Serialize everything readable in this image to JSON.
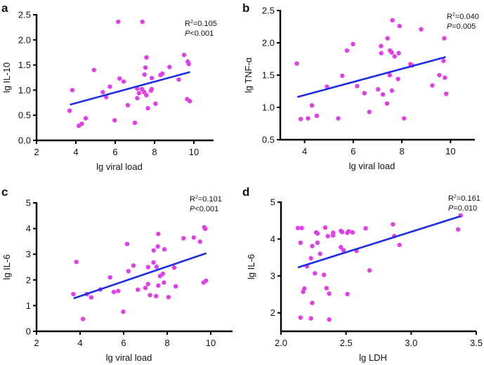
{
  "colors": {
    "points": "#e23ee8",
    "fit_line": "#1b2ee6",
    "axis": "#000000"
  },
  "chart_data": [
    {
      "panel": "a",
      "type": "scatter",
      "xlabel": "lg viral load",
      "ylabel": "lg IL-10",
      "xlim": [
        2,
        11
      ],
      "ylim": [
        0,
        2.5
      ],
      "xticks": [
        "2",
        "4",
        "6",
        "8",
        "10"
      ],
      "xtick_values": [
        2,
        4,
        6,
        8,
        10
      ],
      "yticks": [
        "0.0",
        "0.5",
        "1.0",
        "1.5",
        "2.0",
        "2.5"
      ],
      "ytick_values": [
        0,
        0.5,
        1,
        1.5,
        2,
        2.5
      ],
      "r2": "R",
      "r2_sup": "2",
      "r2_value": "=0.105",
      "p_symbol": "P",
      "p_value": "<0.001",
      "fit": [
        [
          3.7,
          0.71
        ],
        [
          9.8,
          1.36
        ]
      ],
      "points": [
        [
          6.15,
          2.36
        ],
        [
          7.38,
          2.36
        ],
        [
          3.68,
          0.59
        ],
        [
          3.82,
          1.0
        ],
        [
          4.15,
          0.29
        ],
        [
          4.3,
          0.33
        ],
        [
          4.5,
          0.44
        ],
        [
          4.92,
          1.4
        ],
        [
          5.37,
          0.96
        ],
        [
          5.54,
          0.86
        ],
        [
          5.73,
          1.07
        ],
        [
          5.97,
          0.4
        ],
        [
          6.22,
          1.23
        ],
        [
          6.43,
          1.17
        ],
        [
          6.64,
          0.7
        ],
        [
          7.0,
          0.35
        ],
        [
          7.12,
          1.03
        ],
        [
          7.12,
          0.84
        ],
        [
          7.21,
          0.94
        ],
        [
          7.36,
          1.02
        ],
        [
          7.49,
          1.31
        ],
        [
          7.48,
          0.96
        ],
        [
          7.58,
          0.9
        ],
        [
          7.54,
          1.45
        ],
        [
          7.59,
          1.65
        ],
        [
          7.66,
          0.64
        ],
        [
          7.82,
          0.99
        ],
        [
          7.85,
          1.02
        ],
        [
          7.86,
          1.24
        ],
        [
          8.05,
          0.73
        ],
        [
          8.3,
          1.3
        ],
        [
          8.4,
          1.33
        ],
        [
          8.76,
          1.46
        ],
        [
          9.23,
          1.21
        ],
        [
          9.5,
          1.7
        ],
        [
          9.69,
          1.57
        ],
        [
          9.74,
          1.52
        ],
        [
          9.66,
          0.82
        ],
        [
          9.79,
          0.78
        ]
      ]
    },
    {
      "panel": "b",
      "type": "scatter",
      "xlabel": "lg viral load",
      "ylabel": "lg TNF-α",
      "xlim": [
        3,
        11
      ],
      "ylim": [
        0.5,
        2.5
      ],
      "xticks": [
        "4",
        "6",
        "8",
        "10"
      ],
      "xtick_values": [
        4,
        6,
        8,
        10
      ],
      "yticks": [
        "0.5",
        "1.0",
        "1.5",
        "2.0",
        "2.5"
      ],
      "ytick_values": [
        0.5,
        1,
        1.5,
        2,
        2.5
      ],
      "r2": "R",
      "r2_sup": "2",
      "r2_value": "=0.040",
      "p_symbol": "P",
      "p_value": "=0.005",
      "fit": [
        [
          3.7,
          1.16
        ],
        [
          9.8,
          1.78
        ]
      ],
      "points": [
        [
          3.68,
          1.68
        ],
        [
          3.84,
          0.82
        ],
        [
          4.14,
          0.83
        ],
        [
          4.3,
          1.03
        ],
        [
          4.5,
          0.87
        ],
        [
          4.92,
          1.32
        ],
        [
          5.38,
          0.83
        ],
        [
          5.55,
          1.49
        ],
        [
          5.74,
          1.88
        ],
        [
          5.99,
          1.98
        ],
        [
          6.16,
          1.33
        ],
        [
          6.46,
          1.22
        ],
        [
          6.66,
          0.93
        ],
        [
          7.02,
          1.28
        ],
        [
          7.14,
          1.95
        ],
        [
          7.15,
          1.84
        ],
        [
          7.22,
          1.2
        ],
        [
          7.39,
          1.06
        ],
        [
          7.41,
          2.07
        ],
        [
          7.51,
          1.88
        ],
        [
          7.5,
          1.5
        ],
        [
          7.58,
          1.85
        ],
        [
          7.61,
          2.35
        ],
        [
          7.59,
          1.26
        ],
        [
          7.7,
          1.79
        ],
        [
          7.84,
          1.44
        ],
        [
          7.87,
          1.84
        ],
        [
          7.9,
          2.26
        ],
        [
          8.09,
          0.83
        ],
        [
          8.35,
          1.67
        ],
        [
          8.42,
          1.65
        ],
        [
          8.79,
          2.21
        ],
        [
          9.25,
          1.34
        ],
        [
          9.54,
          1.5
        ],
        [
          9.71,
          1.72
        ],
        [
          9.74,
          2.07
        ],
        [
          9.77,
          1.46
        ],
        [
          9.82,
          1.21
        ]
      ]
    },
    {
      "panel": "c",
      "type": "scatter",
      "xlabel": "lg viral load",
      "ylabel": "lg IL-6",
      "xlim": [
        2,
        11
      ],
      "ylim": [
        0,
        5
      ],
      "xticks": [
        "2",
        "4",
        "6",
        "8",
        "10"
      ],
      "xtick_values": [
        2,
        4,
        6,
        8,
        10
      ],
      "yticks": [
        "0",
        "1",
        "2",
        "3",
        "4",
        "5"
      ],
      "ytick_values": [
        0,
        1,
        2,
        3,
        4,
        5
      ],
      "r2": "R",
      "r2_sup": "2",
      "r2_value": "=0.101",
      "p_symbol": "P",
      "p_value": "<0.001",
      "fit": [
        [
          3.7,
          1.28
        ],
        [
          9.8,
          3.04
        ]
      ],
      "points": [
        [
          3.69,
          1.45
        ],
        [
          3.83,
          2.7
        ],
        [
          4.13,
          0.48
        ],
        [
          4.31,
          1.45
        ],
        [
          4.51,
          1.32
        ],
        [
          4.93,
          1.63
        ],
        [
          5.38,
          2.1
        ],
        [
          5.55,
          1.53
        ],
        [
          5.75,
          1.57
        ],
        [
          5.98,
          0.76
        ],
        [
          6.16,
          3.4
        ],
        [
          6.22,
          2.34
        ],
        [
          6.45,
          2.56
        ],
        [
          6.65,
          1.62
        ],
        [
          7.0,
          1.69
        ],
        [
          7.12,
          2.5
        ],
        [
          7.12,
          1.84
        ],
        [
          7.21,
          1.41
        ],
        [
          7.37,
          2.68
        ],
        [
          7.38,
          3.15
        ],
        [
          7.49,
          1.37
        ],
        [
          7.51,
          2.51
        ],
        [
          7.57,
          3.3
        ],
        [
          7.59,
          3.79
        ],
        [
          7.59,
          1.78
        ],
        [
          7.67,
          2.15
        ],
        [
          7.8,
          2.24
        ],
        [
          7.85,
          1.9
        ],
        [
          7.87,
          3.19
        ],
        [
          8.06,
          1.33
        ],
        [
          8.32,
          2.48
        ],
        [
          8.39,
          1.75
        ],
        [
          8.75,
          3.62
        ],
        [
          9.22,
          3.65
        ],
        [
          9.51,
          3.49
        ],
        [
          9.67,
          1.9
        ],
        [
          9.7,
          4.05
        ],
        [
          9.75,
          3.99
        ],
        [
          9.78,
          1.97
        ]
      ]
    },
    {
      "panel": "d",
      "type": "scatter",
      "xlabel": "lg LDH",
      "ylabel": "lg IL-6",
      "xlim": [
        2.0,
        3.5
      ],
      "ylim": [
        1.5,
        5
      ],
      "xticks": [
        "2.0",
        "2.5",
        "3.0",
        "3.5"
      ],
      "xtick_values": [
        2.0,
        2.5,
        3.0,
        3.5
      ],
      "yticks": [
        "2",
        "3",
        "4",
        "5"
      ],
      "ytick_values": [
        2,
        3,
        4,
        5
      ],
      "r2": "R",
      "r2_sup": "2",
      "r2_value": "=0.161",
      "p_symbol": "P",
      "p_value": "=0.010",
      "fit": [
        [
          2.13,
          3.23
        ],
        [
          3.38,
          4.62
        ]
      ],
      "points": [
        [
          2.13,
          4.3
        ],
        [
          2.16,
          4.3
        ],
        [
          2.15,
          3.9
        ],
        [
          2.15,
          1.87
        ],
        [
          2.17,
          2.57
        ],
        [
          2.18,
          2.66
        ],
        [
          2.2,
          3.26
        ],
        [
          2.23,
          3.48
        ],
        [
          2.23,
          1.85
        ],
        [
          2.24,
          3.81
        ],
        [
          2.24,
          2.27
        ],
        [
          2.26,
          3.07
        ],
        [
          2.27,
          4.18
        ],
        [
          2.28,
          4.15
        ],
        [
          2.28,
          3.9
        ],
        [
          2.3,
          3.6
        ],
        [
          2.33,
          3.03
        ],
        [
          2.34,
          4.31
        ],
        [
          2.35,
          2.67
        ],
        [
          2.36,
          4.08
        ],
        [
          2.37,
          2.52
        ],
        [
          2.37,
          1.82
        ],
        [
          2.4,
          4.17
        ],
        [
          2.4,
          4.1
        ],
        [
          2.46,
          4.22
        ],
        [
          2.46,
          3.78
        ],
        [
          2.47,
          4.19
        ],
        [
          2.48,
          3.7
        ],
        [
          2.51,
          2.51
        ],
        [
          2.51,
          4.17
        ],
        [
          2.52,
          4.21
        ],
        [
          2.55,
          4.18
        ],
        [
          2.58,
          3.68
        ],
        [
          2.65,
          4.29
        ],
        [
          2.68,
          3.15
        ],
        [
          2.86,
          4.4
        ],
        [
          2.87,
          4.08
        ],
        [
          2.91,
          3.84
        ],
        [
          3.36,
          4.26
        ],
        [
          3.38,
          4.64
        ]
      ]
    }
  ]
}
